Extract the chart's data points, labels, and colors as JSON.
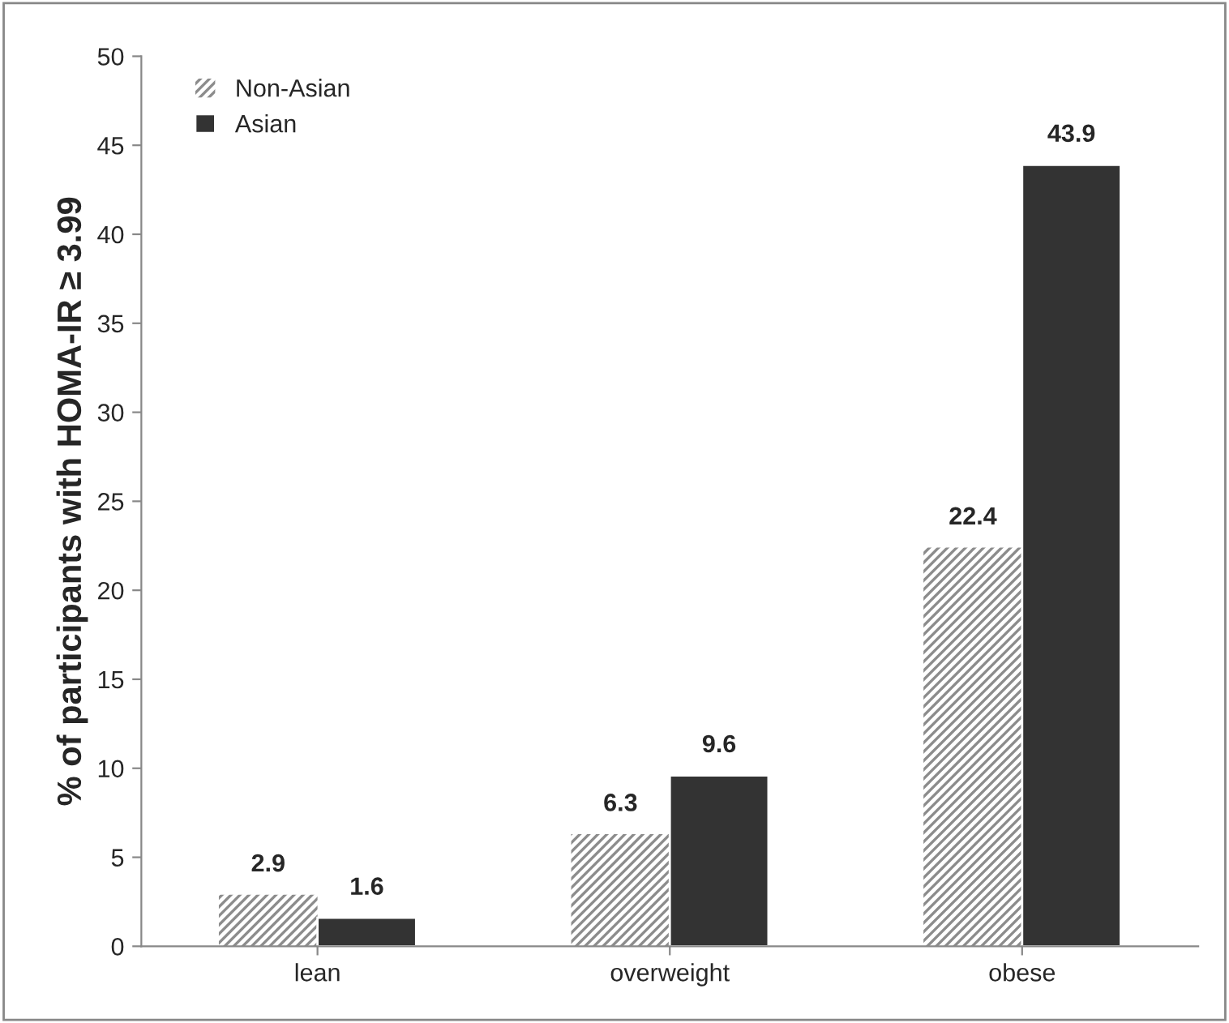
{
  "chart_data": {
    "type": "bar",
    "ylabel": "% of participants with HOMA-IR ≥ 3.99",
    "categories": [
      "lean",
      "overweight",
      "obese"
    ],
    "series": [
      {
        "name": "Non-Asian",
        "color": "#8c8c8c",
        "values": [
          2.9,
          6.3,
          22.4
        ]
      },
      {
        "name": "Asian",
        "color": "#333333",
        "values": [
          1.6,
          9.6,
          43.9
        ]
      }
    ],
    "ylim": [
      0,
      50
    ],
    "yticks": [
      0,
      5,
      10,
      15,
      20,
      25,
      30,
      35,
      40,
      45,
      50
    ],
    "data_labels": true,
    "legend": "top left",
    "grid": false
  }
}
